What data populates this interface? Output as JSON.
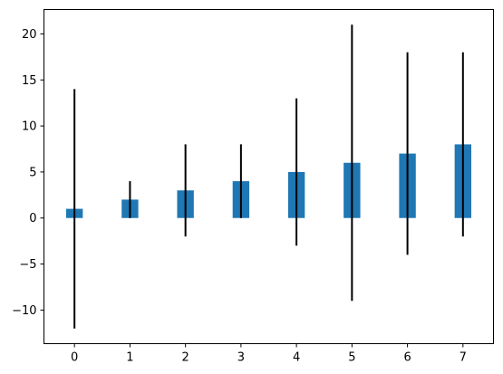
{
  "chart_data": {
    "type": "bar",
    "x": [
      0,
      1,
      2,
      3,
      4,
      5,
      6,
      7
    ],
    "values": [
      1,
      2,
      3,
      4,
      5,
      6,
      7,
      8
    ],
    "error_bars": [
      {
        "low": -12,
        "high": 14
      },
      {
        "low": 0,
        "high": 4
      },
      {
        "low": -2,
        "high": 8
      },
      {
        "low": 0,
        "high": 8
      },
      {
        "low": -3,
        "high": 13
      },
      {
        "low": -9,
        "high": 21
      },
      {
        "low": -4,
        "high": 18
      },
      {
        "low": -2,
        "high": 18
      }
    ],
    "title": "",
    "xlabel": "",
    "ylabel": "",
    "xlim": [
      -0.55,
      7.55
    ],
    "ylim": [
      -13.65,
      22.65
    ],
    "xticks": [
      0,
      1,
      2,
      3,
      4,
      5,
      6,
      7
    ],
    "yticks": [
      -10,
      -5,
      0,
      5,
      10,
      15,
      20
    ],
    "xtick_labels": [
      "0",
      "1",
      "2",
      "3",
      "4",
      "5",
      "6",
      "7"
    ],
    "ytick_labels": [
      "−10",
      "−5",
      "0",
      "5",
      "10",
      "15",
      "20"
    ],
    "bar_color": "#1f77b4",
    "error_color": "#000000",
    "grid": false,
    "legend": false
  }
}
